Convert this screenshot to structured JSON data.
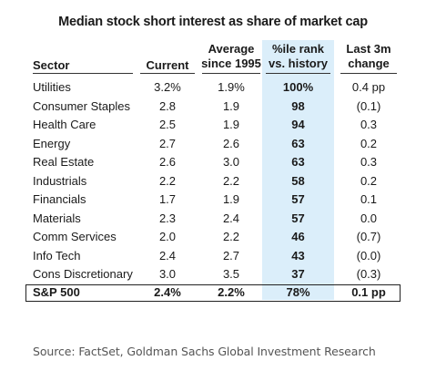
{
  "title": "Median stock short interest as share of market cap",
  "headers": {
    "sector": [
      "Sector"
    ],
    "current": [
      "Current"
    ],
    "average": [
      "Average",
      "since 1995"
    ],
    "rank": [
      "%ile rank",
      "vs. history"
    ],
    "change": [
      "Last 3m",
      "change"
    ]
  },
  "rows": [
    {
      "sector": "Utilities",
      "current": "3.2%",
      "average": "1.9%",
      "rank": "100%",
      "change": "0.4 pp"
    },
    {
      "sector": "Consumer Staples",
      "current": "2.8",
      "average": "1.9",
      "rank": "98",
      "change": "(0.1)"
    },
    {
      "sector": "Health Care",
      "current": "2.5",
      "average": "1.9",
      "rank": "94",
      "change": "0.3"
    },
    {
      "sector": "Energy",
      "current": "2.7",
      "average": "2.6",
      "rank": "63",
      "change": "0.2"
    },
    {
      "sector": "Real Estate",
      "current": "2.6",
      "average": "3.0",
      "rank": "63",
      "change": "0.3"
    },
    {
      "sector": "Industrials",
      "current": "2.2",
      "average": "2.2",
      "rank": "58",
      "change": "0.2"
    },
    {
      "sector": "Financials",
      "current": "1.7",
      "average": "1.9",
      "rank": "57",
      "change": "0.1"
    },
    {
      "sector": "Materials",
      "current": "2.3",
      "average": "2.4",
      "rank": "57",
      "change": "0.0"
    },
    {
      "sector": "Comm Services",
      "current": "2.0",
      "average": "2.2",
      "rank": "46",
      "change": "(0.7)"
    },
    {
      "sector": "Info Tech",
      "current": "2.4",
      "average": "2.7",
      "rank": "43",
      "change": "(0.0)"
    },
    {
      "sector": "Cons Discretionary",
      "current": "3.0",
      "average": "3.5",
      "rank": "37",
      "change": "(0.3)"
    }
  ],
  "total": {
    "sector": "S&P 500",
    "current": "2.4%",
    "average": "2.2%",
    "rank": "78%",
    "change": "0.1 pp"
  },
  "source": "Source: FactSet, Goldman Sachs Global Investment Research",
  "colors": {
    "highlight": "#dbeefa",
    "text": "#1a1a1a",
    "source": "#555555"
  }
}
